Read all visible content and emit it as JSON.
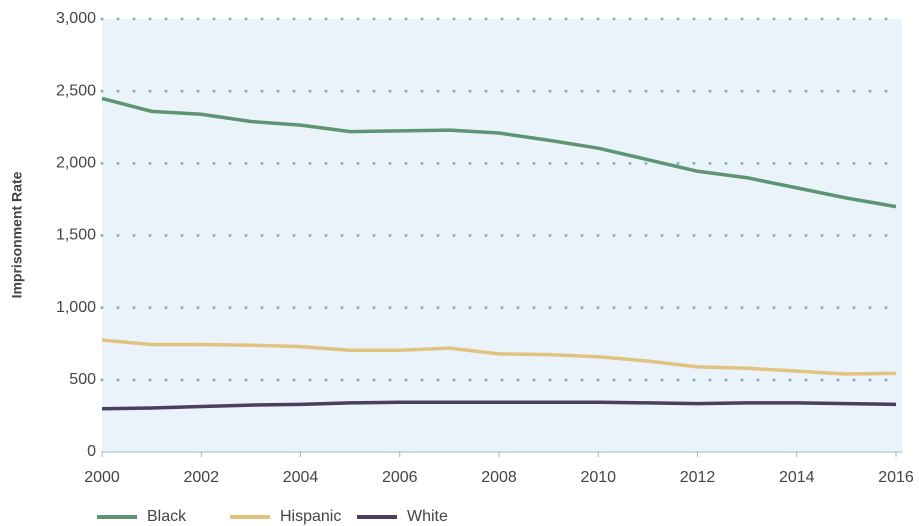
{
  "chart_data": {
    "type": "line",
    "y_label": "Imprisonment Rate",
    "x": [
      2000,
      2001,
      2002,
      2003,
      2004,
      2005,
      2006,
      2007,
      2008,
      2009,
      2010,
      2011,
      2012,
      2013,
      2014,
      2015,
      2016
    ],
    "series": [
      {
        "name": "Black",
        "color": "#5e9472",
        "values": [
          2450,
          2360,
          2340,
          2290,
          2265,
          2220,
          2225,
          2230,
          2210,
          2160,
          2105,
          2025,
          1945,
          1900,
          1830,
          1760,
          1700
        ]
      },
      {
        "name": "Hispanic",
        "color": "#e2c27f",
        "values": [
          775,
          745,
          745,
          740,
          730,
          705,
          705,
          720,
          680,
          675,
          660,
          630,
          590,
          580,
          560,
          540,
          545
        ]
      },
      {
        "name": "White",
        "color": "#4c3f5e",
        "values": [
          300,
          305,
          315,
          325,
          330,
          340,
          345,
          345,
          345,
          345,
          345,
          340,
          335,
          340,
          340,
          335,
          330
        ]
      }
    ],
    "xlim": [
      2000,
      2016
    ],
    "xticks": [
      2000,
      2002,
      2004,
      2006,
      2008,
      2010,
      2012,
      2014,
      2016
    ],
    "ylim": [
      0,
      3000
    ],
    "yticks": [
      0,
      500,
      {
        "value": 1000,
        "label": "1,000"
      },
      {
        "value": 1500,
        "label": "1,500"
      },
      {
        "value": 2000,
        "label": "2,000"
      },
      {
        "value": 2500,
        "label": "2,500"
      },
      {
        "value": 3000,
        "label": "3,000"
      }
    ],
    "grid": true,
    "legend": "bottom"
  }
}
